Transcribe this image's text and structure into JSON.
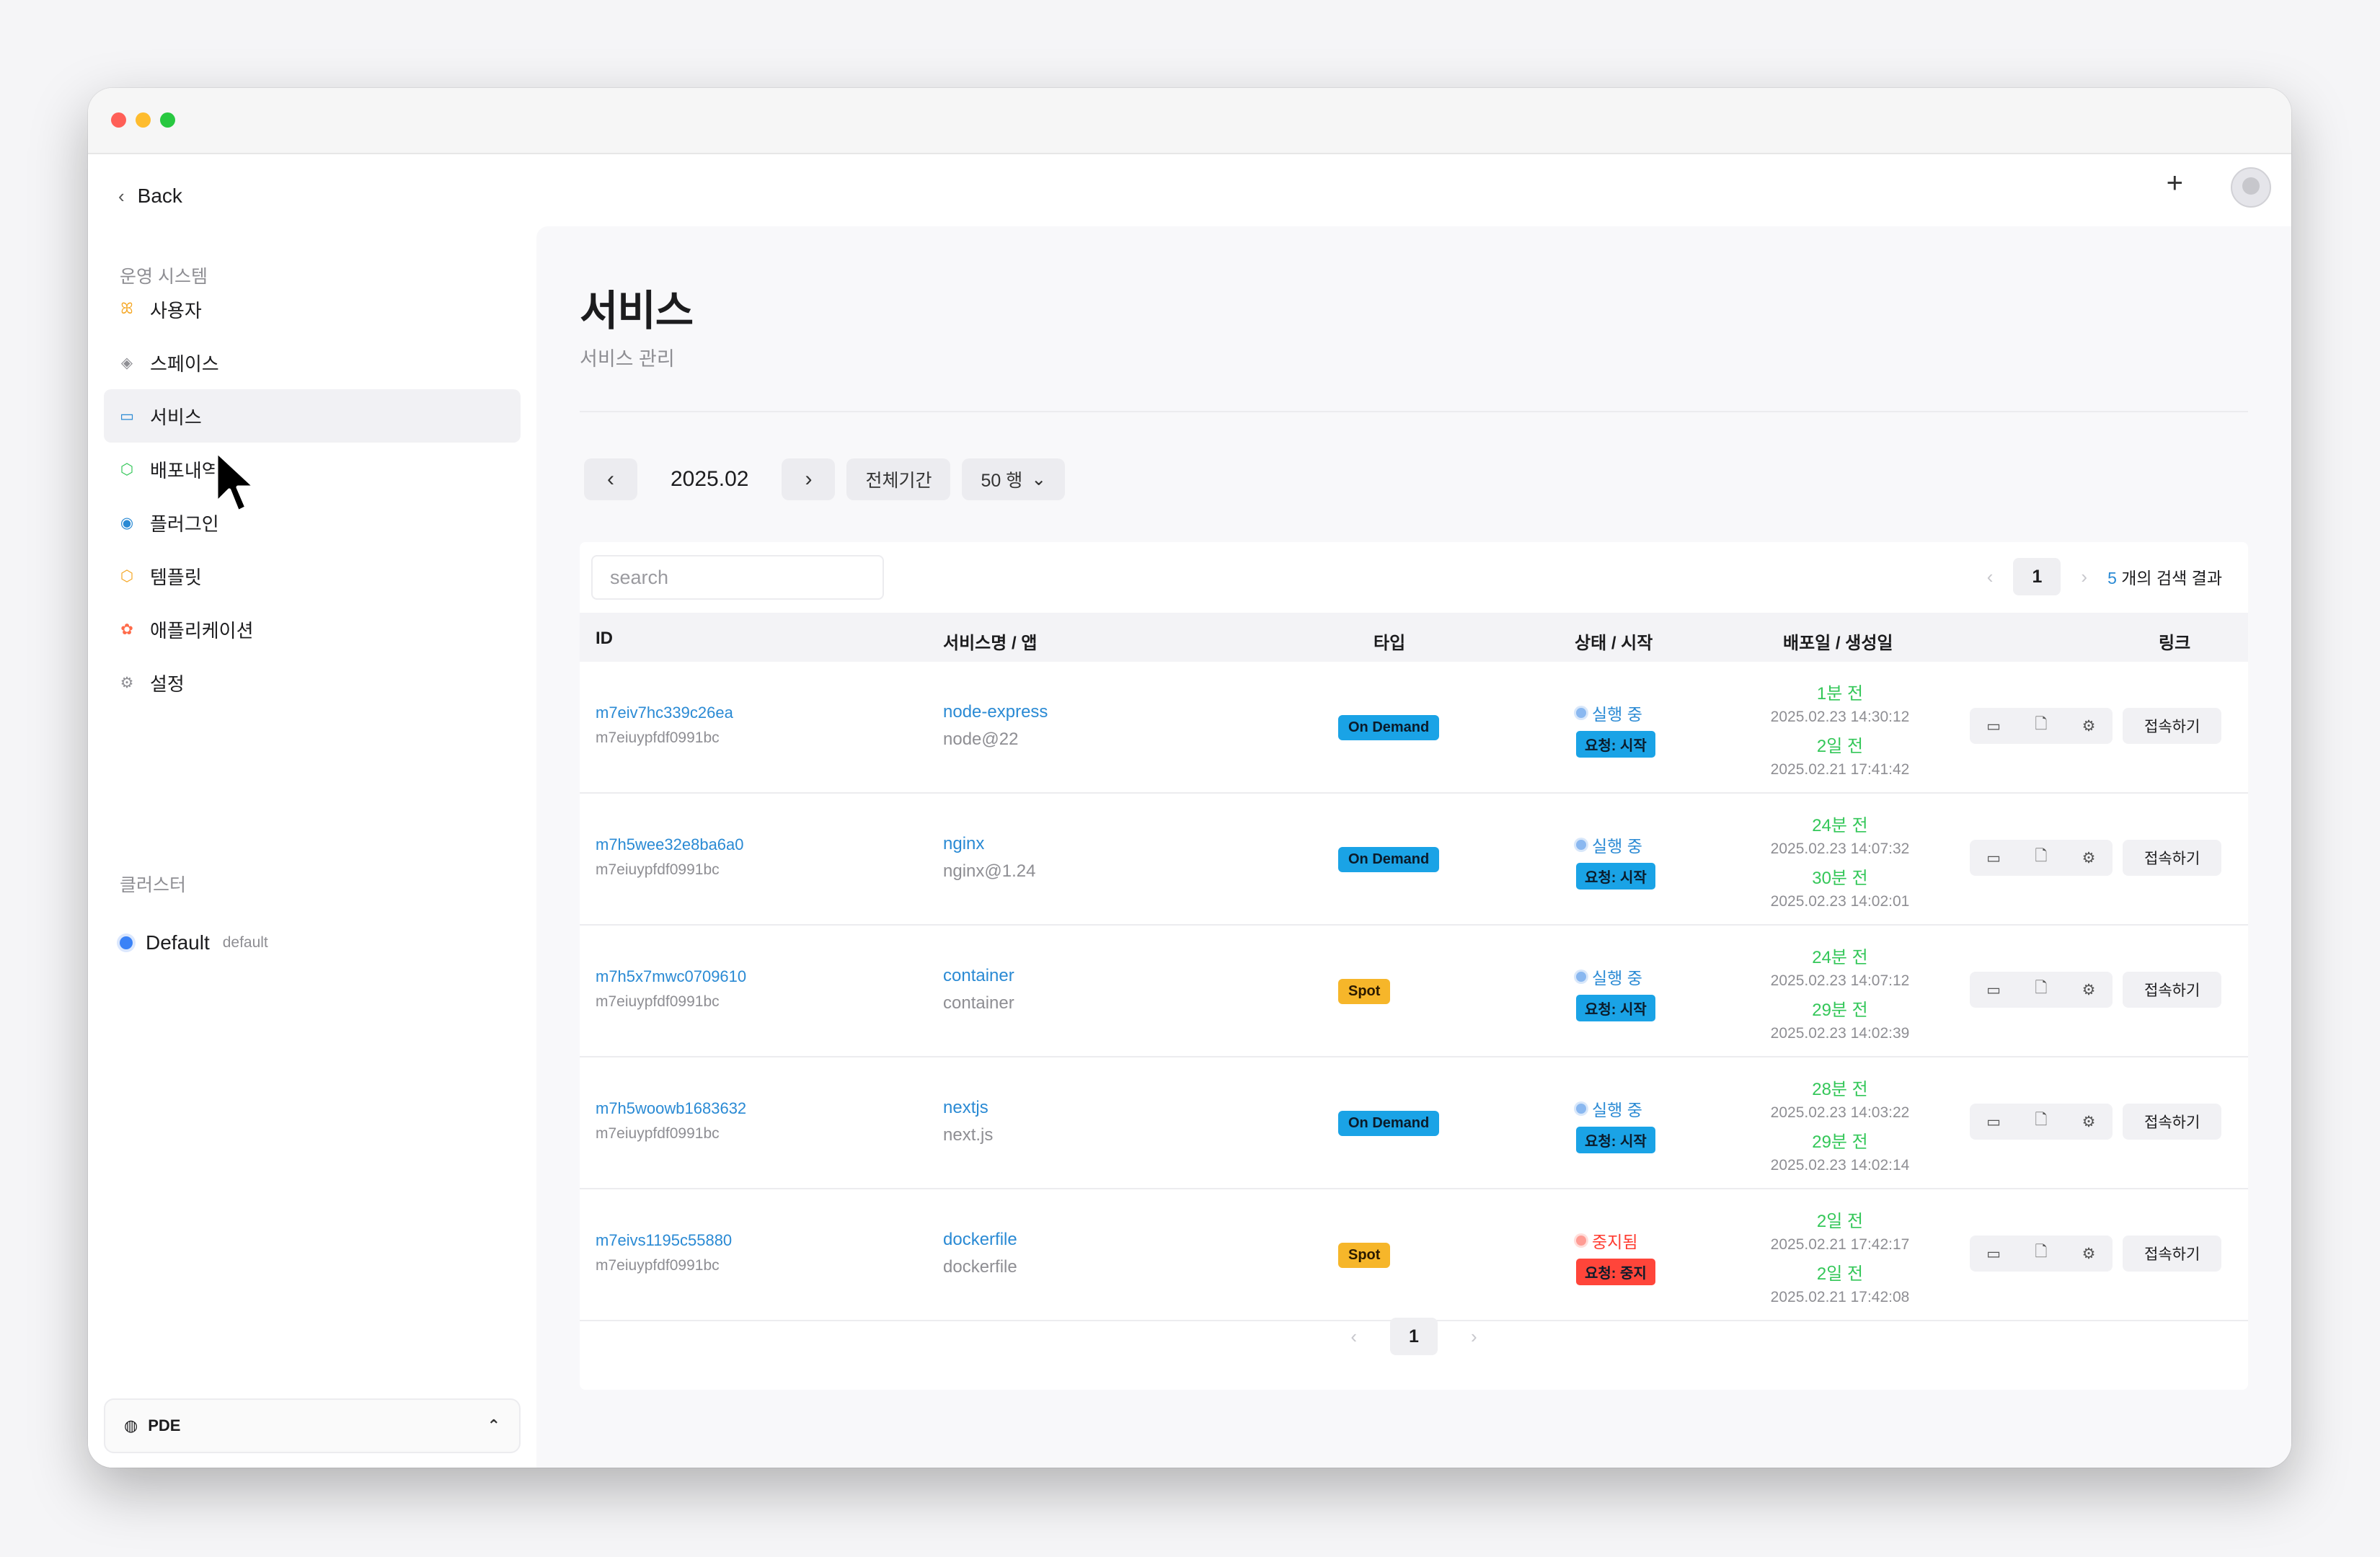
{
  "nav": {
    "back_label": "Back",
    "section_ops": "운영 시스템",
    "items": [
      {
        "label": "사용자",
        "icon": "users-icon",
        "glyph": "ꕤ",
        "color": "#f5a623"
      },
      {
        "label": "스페이스",
        "icon": "layers-icon",
        "glyph": "◈",
        "color": "#8e8e93"
      },
      {
        "label": "서비스",
        "icon": "window-icon",
        "glyph": "▭",
        "color": "#2a8ad4"
      },
      {
        "label": "배포내역",
        "icon": "package-icon",
        "glyph": "⬡",
        "color": "#34c759"
      },
      {
        "label": "플러그인",
        "icon": "plugin-icon",
        "glyph": "◉",
        "color": "#2a8ad4"
      },
      {
        "label": "템플릿",
        "icon": "box-icon",
        "glyph": "⬡",
        "color": "#f5a623"
      },
      {
        "label": "애플리케이션",
        "icon": "app-icon",
        "glyph": "✿",
        "color": "#ff6b4a"
      },
      {
        "label": "설정",
        "icon": "gear-icon",
        "glyph": "⚙",
        "color": "#8e8e93"
      }
    ],
    "section_cluster": "클러스터",
    "cluster": {
      "name": "Default",
      "sub": "default"
    },
    "workspace": "PDE"
  },
  "header": {
    "plus": "+"
  },
  "page": {
    "title": "서비스",
    "subtitle": "서비스 관리"
  },
  "toolbar": {
    "prev": "‹",
    "month": "2025.02",
    "next": "›",
    "all_period": "전체기간",
    "rows": "50 행",
    "rows_caret": "⌄"
  },
  "search": {
    "placeholder": "search"
  },
  "pager": {
    "prev": "‹",
    "page": "1",
    "next": "›",
    "result_count": "5",
    "result_text": "개의 검색 결과"
  },
  "table": {
    "headers": {
      "id": "ID",
      "service": "서비스명 / 앱",
      "type": "타입",
      "status": "상태 / 시작",
      "dates": "배포일 / 생성일",
      "link": "링크"
    },
    "connect_label": "접속하기",
    "rows": [
      {
        "id": "m7eiv7hc339c26ea",
        "owner": "m7eiuypfdf0991bc",
        "name": "node-express",
        "app": "node@22",
        "type": "On Demand",
        "type_kind": "ondemand",
        "status": "실행 중",
        "status_color": "#2a8ad4",
        "dot_color": "#8ab8f0",
        "request": "요청: 시작",
        "req_color": "#1aa3e6",
        "deploy_rel": "1분 전",
        "deploy_abs": "2025.02.23 14:30:12",
        "created_rel": "2일 전",
        "created_abs": "2025.02.21 17:41:42"
      },
      {
        "id": "m7h5wee32e8ba6a0",
        "owner": "m7eiuypfdf0991bc",
        "name": "nginx",
        "app": "nginx@1.24",
        "type": "On Demand",
        "type_kind": "ondemand",
        "status": "실행 중",
        "status_color": "#2a8ad4",
        "dot_color": "#8ab8f0",
        "request": "요청: 시작",
        "req_color": "#1aa3e6",
        "deploy_rel": "24분 전",
        "deploy_abs": "2025.02.23 14:07:32",
        "created_rel": "30분 전",
        "created_abs": "2025.02.23 14:02:01"
      },
      {
        "id": "m7h5x7mwc0709610",
        "owner": "m7eiuypfdf0991bc",
        "name": "container",
        "app": "container",
        "type": "Spot",
        "type_kind": "spot",
        "status": "실행 중",
        "status_color": "#2a8ad4",
        "dot_color": "#8ab8f0",
        "request": "요청: 시작",
        "req_color": "#1aa3e6",
        "deploy_rel": "24분 전",
        "deploy_abs": "2025.02.23 14:07:12",
        "created_rel": "29분 전",
        "created_abs": "2025.02.23 14:02:39"
      },
      {
        "id": "m7h5woowb1683632",
        "owner": "m7eiuypfdf0991bc",
        "name": "nextjs",
        "app": "next.js",
        "type": "On Demand",
        "type_kind": "ondemand",
        "status": "실행 중",
        "status_color": "#2a8ad4",
        "dot_color": "#8ab8f0",
        "request": "요청: 시작",
        "req_color": "#1aa3e6",
        "deploy_rel": "28분 전",
        "deploy_abs": "2025.02.23 14:03:22",
        "created_rel": "29분 전",
        "created_abs": "2025.02.23 14:02:14"
      },
      {
        "id": "m7eivs1195c55880",
        "owner": "m7eiuypfdf0991bc",
        "name": "dockerfile",
        "app": "dockerfile",
        "type": "Spot",
        "type_kind": "spot",
        "status": "중지됨",
        "status_color": "#ff3b30",
        "dot_color": "#ff9c94",
        "request": "요청: 중지",
        "req_color": "#ff453a",
        "deploy_rel": "2일 전",
        "deploy_abs": "2025.02.21 17:42:17",
        "created_rel": "2일 전",
        "created_abs": "2025.02.21 17:42:08"
      }
    ]
  },
  "colors": {
    "accent": "#2a8ad4",
    "success": "#34c759",
    "danger": "#ff3b30",
    "spot": "#f6b62a",
    "ondemand": "#1aa3e6"
  }
}
